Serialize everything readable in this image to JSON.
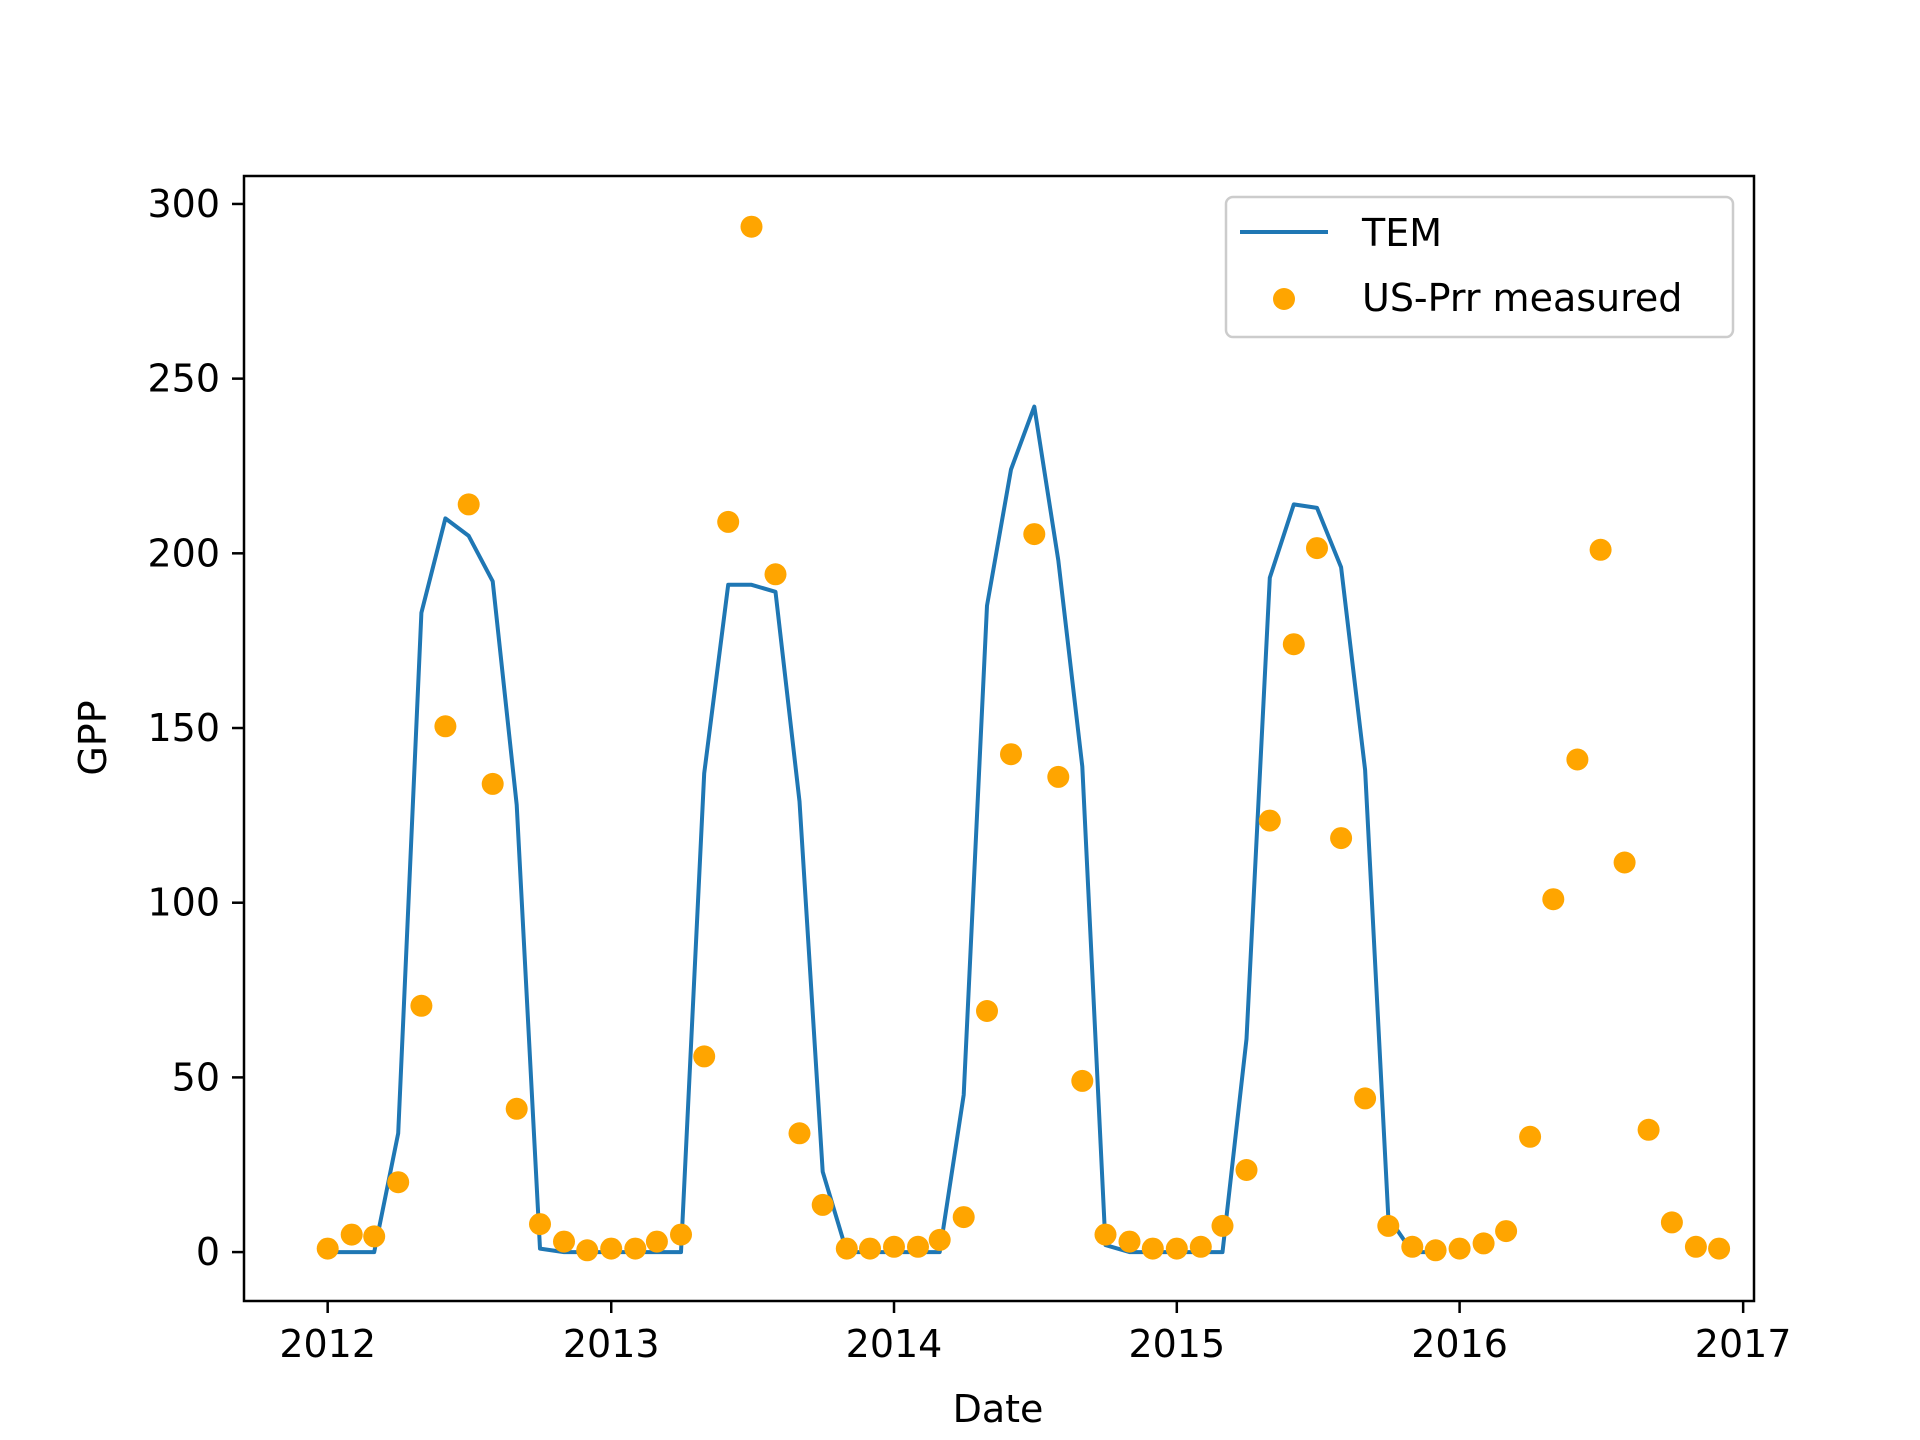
{
  "chart_data": {
    "type": "line",
    "title": "",
    "xlabel": "Date",
    "ylabel": "GPP",
    "x_ticks": [
      "2012",
      "2013",
      "2014",
      "2015",
      "2016",
      "2017"
    ],
    "y_ticks": [
      "0",
      "50",
      "100",
      "150",
      "200",
      "250",
      "300"
    ],
    "xlim": [
      "2011-09-15",
      "2017-01-15"
    ],
    "ylim": [
      -14,
      308
    ],
    "grid": false,
    "legend_position": "top-right",
    "colors": {
      "tem": "#1f77b4",
      "measured": "#ffa500",
      "axis": "#000000",
      "legend_border": "#cccccc"
    },
    "series": [
      {
        "name": "TEM",
        "kind": "line",
        "x": [
          "2012-01-01",
          "2012-02-01",
          "2012-03-01",
          "2012-04-01",
          "2012-05-01",
          "2012-06-01",
          "2012-07-01",
          "2012-08-01",
          "2012-09-01",
          "2012-10-01",
          "2012-11-01",
          "2012-12-01",
          "2013-01-01",
          "2013-02-01",
          "2013-03-01",
          "2013-04-01",
          "2013-05-01",
          "2013-06-01",
          "2013-07-01",
          "2013-08-01",
          "2013-09-01",
          "2013-10-01",
          "2013-11-01",
          "2013-12-01",
          "2014-01-01",
          "2014-02-01",
          "2014-03-01",
          "2014-04-01",
          "2014-05-01",
          "2014-06-01",
          "2014-07-01",
          "2014-08-01",
          "2014-09-01",
          "2014-10-01",
          "2014-11-01",
          "2014-12-01",
          "2015-01-01",
          "2015-02-01",
          "2015-03-01",
          "2015-04-01",
          "2015-05-01",
          "2015-06-01",
          "2015-07-01",
          "2015-08-01",
          "2015-09-01",
          "2015-10-01",
          "2015-11-01",
          "2015-12-01"
        ],
        "y": [
          0,
          0,
          0,
          34,
          183,
          210,
          205,
          192,
          128,
          1,
          0,
          0,
          0,
          0,
          0,
          0,
          137,
          191,
          191,
          189,
          129,
          23,
          0,
          0,
          0,
          0,
          0,
          45,
          185,
          224,
          242,
          198,
          139,
          2,
          0,
          0,
          0,
          0,
          0,
          61,
          193,
          214,
          213,
          196,
          138,
          10,
          0,
          0
        ]
      },
      {
        "name": "US-Prr measured",
        "kind": "scatter",
        "x": [
          "2012-01-01",
          "2012-02-01",
          "2012-03-01",
          "2012-04-01",
          "2012-05-01",
          "2012-06-01",
          "2012-07-01",
          "2012-08-01",
          "2012-09-01",
          "2012-10-01",
          "2012-11-01",
          "2012-12-01",
          "2013-01-01",
          "2013-02-01",
          "2013-03-01",
          "2013-04-01",
          "2013-05-01",
          "2013-06-01",
          "2013-07-01",
          "2013-08-01",
          "2013-09-01",
          "2013-10-01",
          "2013-11-01",
          "2013-12-01",
          "2014-01-01",
          "2014-02-01",
          "2014-03-01",
          "2014-04-01",
          "2014-05-01",
          "2014-06-01",
          "2014-07-01",
          "2014-08-01",
          "2014-09-01",
          "2014-10-01",
          "2014-11-01",
          "2014-12-01",
          "2015-01-01",
          "2015-02-01",
          "2015-03-01",
          "2015-04-01",
          "2015-05-01",
          "2015-06-01",
          "2015-07-01",
          "2015-08-01",
          "2015-09-01",
          "2015-10-01",
          "2015-11-01",
          "2015-12-01",
          "2016-01-01",
          "2016-02-01",
          "2016-03-01",
          "2016-04-01",
          "2016-05-01",
          "2016-06-01",
          "2016-07-01",
          "2016-08-01",
          "2016-09-01",
          "2016-10-01",
          "2016-11-01",
          "2016-12-01"
        ],
        "y": [
          1,
          5,
          4.5,
          20,
          70.5,
          150.5,
          214,
          134,
          41,
          8,
          3,
          0.5,
          1,
          1,
          3,
          5,
          56,
          209,
          293.5,
          194,
          34,
          13.5,
          1,
          1,
          1.5,
          1.5,
          3.5,
          10,
          69,
          142.5,
          205.5,
          136,
          49,
          5,
          3,
          1,
          1,
          1.5,
          7.5,
          23.5,
          123.5,
          174,
          201.5,
          118.5,
          44,
          7.5,
          1.5,
          0.5,
          1,
          2.5,
          6,
          33,
          101,
          141,
          201,
          111.5,
          35,
          8.5,
          1.5,
          1
        ]
      }
    ]
  }
}
